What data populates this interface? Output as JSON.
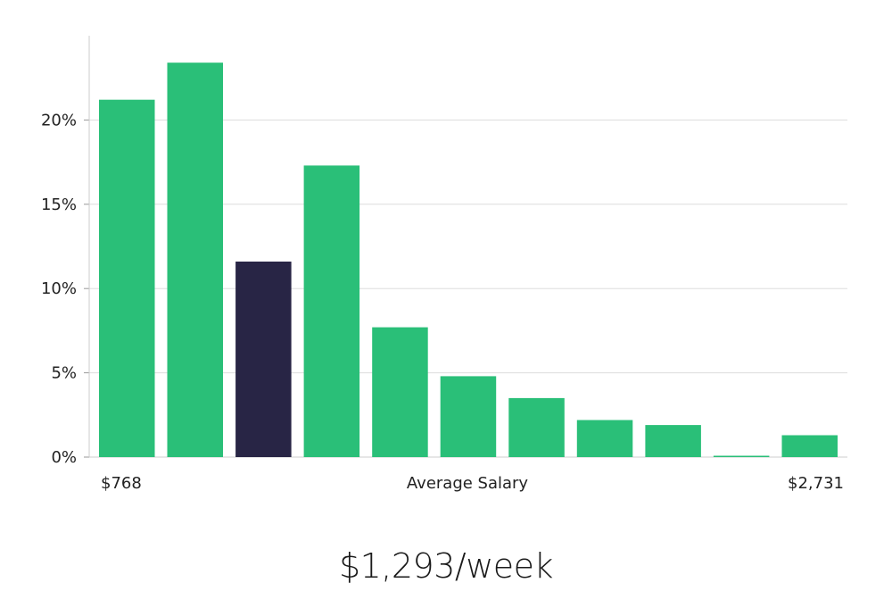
{
  "chart_data": {
    "type": "bar",
    "values": [
      21.2,
      23.4,
      11.6,
      17.3,
      7.7,
      4.8,
      3.5,
      2.2,
      1.9,
      0.05,
      1.3
    ],
    "highlight_index": 2,
    "ylim": [
      0,
      25
    ],
    "y_ticks": [
      0,
      5,
      10,
      15,
      20
    ],
    "y_tick_labels": [
      "0%",
      "5%",
      "10%",
      "15%",
      "20%"
    ],
    "grid": true,
    "x_min_label": "$768",
    "xlabel": "Average Salary",
    "x_max_label": "$2,731",
    "colors": {
      "bar": "#2abf78",
      "highlight": "#282545",
      "grid": "#dddddd",
      "axis": "#cccccc"
    }
  },
  "headline": "$1,293/week"
}
